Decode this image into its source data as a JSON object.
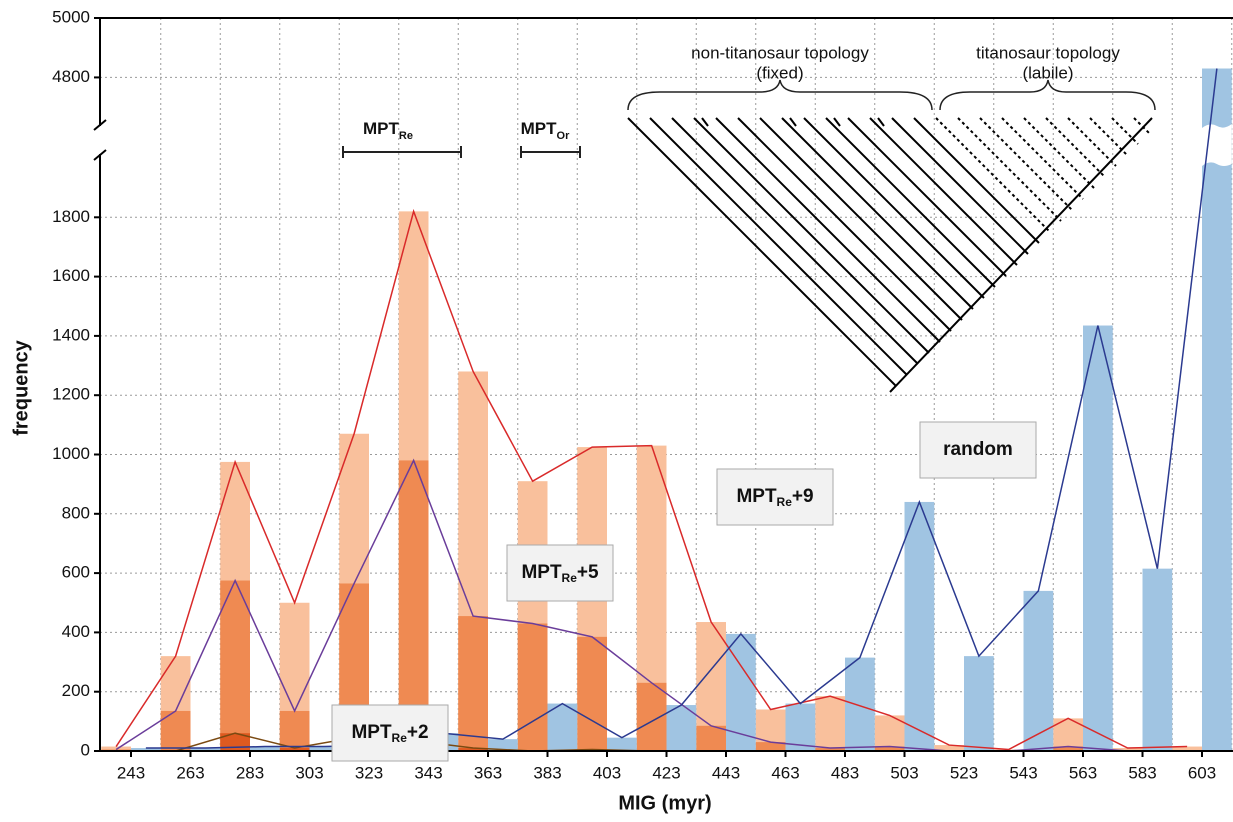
{
  "chart_data": {
    "type": "bar",
    "x_label": "MIG (myr)",
    "y_label": "frequency",
    "categories": [
      "243",
      "263",
      "283",
      "303",
      "323",
      "343",
      "363",
      "383",
      "403",
      "423",
      "443",
      "463",
      "483",
      "503",
      "523",
      "543",
      "563",
      "583",
      "603"
    ],
    "series": [
      {
        "name": "MPT",
        "name_sub": "Re",
        "name_suffix": "+9",
        "color": "#f9c09c",
        "line_color": "#d92a2a",
        "side": "left",
        "values": [
          15,
          320,
          975,
          500,
          1070,
          1820,
          1280,
          910,
          1025,
          1030,
          435,
          140,
          185,
          120,
          20,
          5,
          110,
          10,
          15
        ]
      },
      {
        "name": "MPT",
        "name_sub": "Re",
        "name_suffix": "+5",
        "color": "#ef8a52",
        "line_color": "#6a3d9a",
        "side": "left",
        "values": [
          5,
          135,
          575,
          135,
          565,
          980,
          455,
          430,
          385,
          230,
          85,
          30,
          10,
          15,
          0,
          0,
          15,
          0,
          0
        ]
      },
      {
        "name": "MPT",
        "name_sub": "Re",
        "name_suffix": "+2",
        "color": "#df5a20",
        "line_color": "#7a4a12",
        "side": "left",
        "values": [
          0,
          0,
          60,
          10,
          45,
          35,
          10,
          0,
          5,
          0,
          0,
          0,
          0,
          0,
          0,
          0,
          0,
          0,
          0
        ]
      },
      {
        "name": "random",
        "color": "#a0c4e2",
        "line_color": "#2b3a90",
        "side": "right",
        "values": [
          10,
          10,
          15,
          15,
          20,
          60,
          40,
          160,
          45,
          155,
          395,
          160,
          315,
          840,
          320,
          540,
          1435,
          615,
          4830
        ]
      }
    ],
    "ylim": [
      0,
      2000
    ],
    "yticks": [
      0,
      200,
      400,
      600,
      800,
      1000,
      1200,
      1400,
      1600,
      1800
    ],
    "ylim_upper": [
      4650,
      5000
    ],
    "yticks_upper": [
      4800,
      5000
    ],
    "grid": true,
    "annotations": {
      "mpt_re": {
        "text": "MPT",
        "sub": "Re"
      },
      "mpt_or": {
        "text": "MPT",
        "sub": "Or"
      },
      "left_clade": [
        "non-titanosaur topology",
        "(fixed)"
      ],
      "right_clade": [
        "titanosaur topology",
        "(labile)"
      ]
    }
  }
}
